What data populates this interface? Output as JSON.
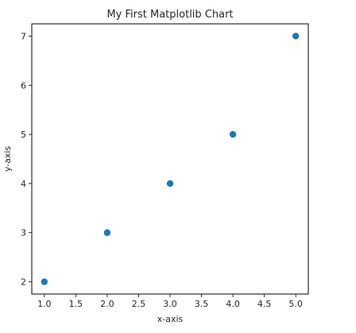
{
  "chart_data": {
    "type": "scatter",
    "title": "My First Matplotlib Chart",
    "xlabel": "x-axis",
    "ylabel": "y-axis",
    "x": [
      1,
      2,
      3,
      4,
      5
    ],
    "y": [
      2,
      3,
      4,
      5,
      7
    ],
    "xlim": [
      0.8,
      5.2
    ],
    "ylim": [
      1.75,
      7.25
    ],
    "xticks": [
      1.0,
      1.5,
      2.0,
      2.5,
      3.0,
      3.5,
      4.0,
      4.5,
      5.0
    ],
    "xtick_labels": [
      "1.0",
      "1.5",
      "2.0",
      "2.5",
      "3.0",
      "3.5",
      "4.0",
      "4.5",
      "5.0"
    ],
    "yticks": [
      2,
      3,
      4,
      5,
      6,
      7
    ],
    "ytick_labels": [
      "2",
      "3",
      "4",
      "5",
      "6",
      "7"
    ],
    "grid": false,
    "marker_color": "#1f77b4"
  }
}
